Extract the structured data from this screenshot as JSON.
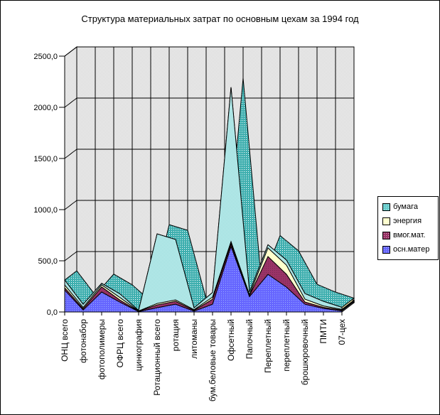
{
  "title": "Структура материальных затрат по основным цехам за 1994 год",
  "colors": {
    "background": "#FFFFFF",
    "border": "#000000",
    "wall_dot": "#C8C8C8",
    "paper_front": "#7FD4D4",
    "paper_front_alt": "#DCF6F6",
    "paper_top": "#3FAFAF",
    "energy": "#FFFFCC",
    "vmog": "#993366",
    "vmog_dot": "#7A2952",
    "osn": "#6666FF",
    "osn_dot": "#99AAFF",
    "ribbon_osn": "#4D4DD9",
    "ribbon_vmog": "#7A2952",
    "ribbon_energy": "#E3E3A8"
  },
  "y_axis": {
    "max": 2500,
    "step": 500,
    "tick_labels": [
      "0,0",
      "500,0",
      "1000,0",
      "1500,0",
      "2000,0",
      "2500,0"
    ]
  },
  "legend": {
    "items": [
      {
        "label": "бумага",
        "color": "#66CCCC"
      },
      {
        "label": "энергия",
        "color": "#FFFFCC"
      },
      {
        "label": "вмог.мат.",
        "color": "#993366"
      },
      {
        "label": "осн.матер",
        "color": "#6666FF"
      }
    ]
  },
  "chart_data": {
    "type": "area",
    "variant": "3d-stacked",
    "title": "Структура материальных затрат по основным цехам за 1994 год",
    "ylim": [
      0,
      2500
    ],
    "grid": true,
    "legend_position": "right",
    "categories": [
      "ОНЦ  всего",
      "фотонабор",
      "фотополимеры",
      "ОФРЦ  всего",
      "цинкография",
      "Ротационный всего",
      "ротация",
      "литоманы",
      "бум.беловые товары",
      "Офсетный",
      "Папочный",
      "Переплетный",
      "переплетный",
      "брошюровочный",
      "ПМТИ",
      "07-цех"
    ],
    "series": [
      {
        "name": "осн.матер",
        "values": [
          215,
          20,
          195,
          95,
          4,
          42,
          76,
          8,
          76,
          640,
          150,
          368,
          243,
          76,
          35,
          10
        ]
      },
      {
        "name": "вмог.мат.",
        "values": [
          21,
          12,
          50,
          20,
          3,
          27,
          28,
          7,
          49,
          28,
          10,
          174,
          125,
          21,
          10,
          8
        ]
      },
      {
        "name": "энергия",
        "values": [
          28,
          13,
          20,
          25,
          3,
          14,
          14,
          7,
          21,
          20,
          10,
          84,
          90,
          28,
          14,
          7
        ]
      },
      {
        "name": "бумага",
        "values": [
          48,
          30,
          15,
          35,
          5,
          680,
          590,
          18,
          44,
          1508,
          25,
          31,
          49,
          55,
          45,
          20
        ]
      }
    ]
  }
}
